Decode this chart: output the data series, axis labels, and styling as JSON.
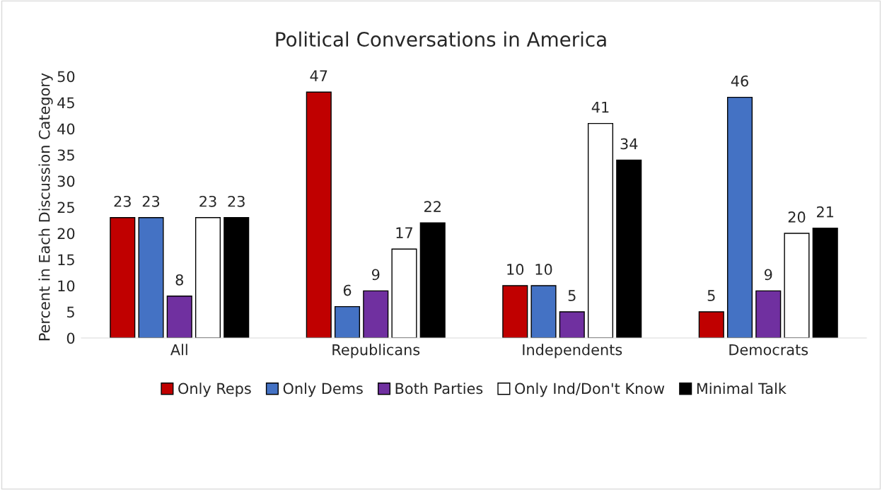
{
  "chart_data": {
    "type": "bar",
    "title": "Political Conversations in America",
    "ylabel": "Percent in Each Discussion Category",
    "categories": [
      "All",
      "Republicans",
      "Independents",
      "Democrats"
    ],
    "series": [
      {
        "name": "Only Reps",
        "color": "#c00000",
        "values": [
          23,
          47,
          10,
          5
        ]
      },
      {
        "name": "Only Dems",
        "color": "#4472c4",
        "values": [
          23,
          6,
          10,
          46
        ]
      },
      {
        "name": "Both Parties",
        "color": "#7030a0",
        "values": [
          8,
          9,
          5,
          9
        ]
      },
      {
        "name": "Only Ind/Don't Know",
        "color": "#ffffff",
        "values": [
          23,
          17,
          41,
          20
        ]
      },
      {
        "name": "Minimal Talk",
        "color": "#000000",
        "values": [
          23,
          22,
          34,
          21
        ]
      }
    ],
    "ylim": [
      0,
      50
    ],
    "yticks": [
      0,
      5,
      10,
      15,
      20,
      25,
      30,
      35,
      40,
      45,
      50
    ],
    "data_labels": true,
    "legend": "bottom",
    "grid": false
  }
}
